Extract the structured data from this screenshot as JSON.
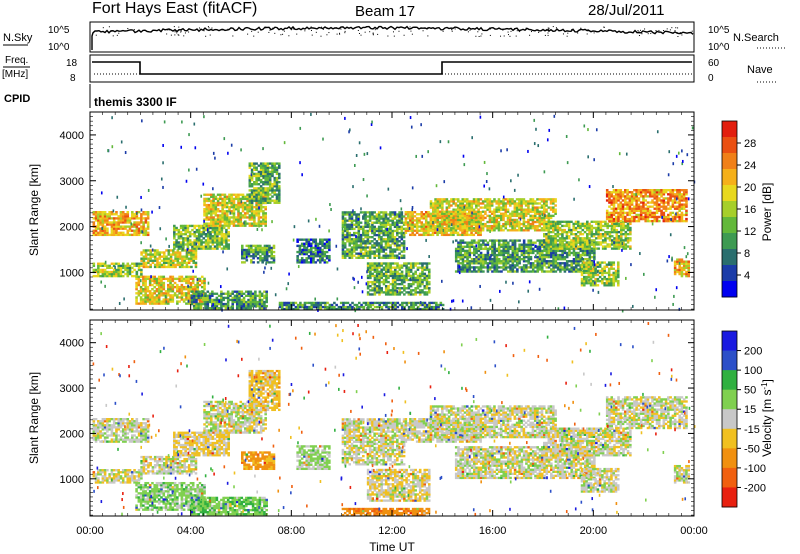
{
  "header": {
    "station": "Fort Hays East (fitACF)",
    "beam": "Beam 17",
    "date": "28/Jul/2011"
  },
  "panels": {
    "nsky": {
      "label": "N.Sky",
      "ticks": [
        "10^5",
        "10^0"
      ],
      "right_ticks": [
        "10^5",
        "10^0"
      ],
      "right_label": "N.Search"
    },
    "freq": {
      "label_top": "Freq.",
      "label_unit": "[MHz]",
      "ticks": [
        "18",
        "8"
      ],
      "right_ticks": [
        "60",
        "0"
      ],
      "right_label": "Nave"
    },
    "cpid": {
      "label": "CPID",
      "text": "themis 3300 IF"
    }
  },
  "colorbars": {
    "power": {
      "title": "Power [dB]",
      "ticks": [
        "28",
        "24",
        "20",
        "16",
        "12",
        "8",
        "4"
      ],
      "colors": [
        "#0000f0",
        "#1b3ca8",
        "#2a6e6e",
        "#3d9a52",
        "#62b83a",
        "#a6cf2a",
        "#e8d81e",
        "#f5b01a",
        "#f08018",
        "#ea5012",
        "#e21e0e"
      ]
    },
    "velocity": {
      "title_main": "Velocity [m s",
      "title_sup": "-1",
      "title_end": "]",
      "ticks": [
        "200",
        "100",
        "50",
        "15",
        "-15",
        "-50",
        "-100",
        "-200"
      ],
      "colors": [
        "#1a1ae0",
        "#2c50c8",
        "#30b040",
        "#80d050",
        "#c8c8c8",
        "#f0c020",
        "#f09010",
        "#f06010",
        "#e82010"
      ]
    }
  },
  "axes": {
    "xlabel": "Time UT",
    "xticks": [
      "00:00",
      "04:00",
      "08:00",
      "12:00",
      "16:00",
      "20:00",
      "00:00"
    ],
    "ylabel": "Slant Range [km]",
    "yticks": [
      "1000",
      "2000",
      "3000",
      "4000"
    ]
  },
  "chart_data": [
    {
      "type": "heatmap",
      "title": "Power",
      "xlabel": "Time UT",
      "ylabel": "Slant Range [km]",
      "x_range_hours": [
        0,
        24
      ],
      "ylim": [
        180,
        4500
      ],
      "value_label": "Power [dB]",
      "value_range": [
        0,
        30
      ],
      "echo_regions": [
        {
          "t0": 0.1,
          "t1": 2.3,
          "r0": 1800,
          "r1": 2300,
          "pow": 20
        },
        {
          "t0": 0.1,
          "t1": 2.0,
          "r0": 900,
          "r1": 1200,
          "pow": 14
        },
        {
          "t0": 1.8,
          "t1": 4.5,
          "r0": 300,
          "r1": 900,
          "pow": 18
        },
        {
          "t0": 2.0,
          "t1": 4.2,
          "r0": 1100,
          "r1": 1500,
          "pow": 16
        },
        {
          "t0": 3.3,
          "t1": 5.5,
          "r0": 1500,
          "r1": 2000,
          "pow": 13
        },
        {
          "t0": 4.5,
          "t1": 7.0,
          "r0": 2000,
          "r1": 2700,
          "pow": 17
        },
        {
          "t0": 6.3,
          "t1": 7.5,
          "r0": 2500,
          "r1": 3400,
          "pow": 12
        },
        {
          "t0": 6.0,
          "t1": 7.3,
          "r0": 1200,
          "r1": 1600,
          "pow": 10
        },
        {
          "t0": 4.0,
          "t1": 7.0,
          "r0": 200,
          "r1": 600,
          "pow": 10
        },
        {
          "t0": 8.2,
          "t1": 9.5,
          "r0": 1200,
          "r1": 1700,
          "pow": 7
        },
        {
          "t0": 10.0,
          "t1": 12.5,
          "r0": 1300,
          "r1": 2300,
          "pow": 11
        },
        {
          "t0": 11.0,
          "t1": 13.5,
          "r0": 500,
          "r1": 1200,
          "pow": 12
        },
        {
          "t0": 12.5,
          "t1": 15.5,
          "r0": 1800,
          "r1": 2300,
          "pow": 19
        },
        {
          "t0": 13.5,
          "t1": 18.5,
          "r0": 1900,
          "r1": 2600,
          "pow": 17
        },
        {
          "t0": 14.5,
          "t1": 20.0,
          "r0": 1000,
          "r1": 1700,
          "pow": 10
        },
        {
          "t0": 18.0,
          "t1": 21.5,
          "r0": 1500,
          "r1": 2100,
          "pow": 14
        },
        {
          "t0": 19.5,
          "t1": 21.0,
          "r0": 700,
          "r1": 1200,
          "pow": 14
        },
        {
          "t0": 20.5,
          "t1": 23.7,
          "r0": 2100,
          "r1": 2800,
          "pow": 22
        },
        {
          "t0": 23.2,
          "t1": 23.8,
          "r0": 900,
          "r1": 1300,
          "pow": 20
        },
        {
          "t0": 7.5,
          "t1": 14.0,
          "r0": 180,
          "r1": 350,
          "pow": 9
        }
      ]
    },
    {
      "type": "heatmap",
      "title": "Velocity",
      "xlabel": "Time UT",
      "ylabel": "Slant Range [km]",
      "x_range_hours": [
        0,
        24
      ],
      "ylim": [
        180,
        4500
      ],
      "value_label": "Velocity [m s^-1]",
      "value_range": [
        -250,
        250
      ],
      "echo_regions": [
        {
          "t0": 0.1,
          "t1": 2.3,
          "r0": 1800,
          "r1": 2300,
          "vel": 0
        },
        {
          "t0": 0.1,
          "t1": 2.0,
          "r0": 900,
          "r1": 1200,
          "vel": -5
        },
        {
          "t0": 1.8,
          "t1": 4.5,
          "r0": 300,
          "r1": 900,
          "vel": 30
        },
        {
          "t0": 2.0,
          "t1": 4.2,
          "r0": 1100,
          "r1": 1500,
          "vel": 0
        },
        {
          "t0": 3.3,
          "t1": 5.5,
          "r0": 1500,
          "r1": 2000,
          "vel": -20
        },
        {
          "t0": 4.5,
          "t1": 7.0,
          "r0": 2000,
          "r1": 2700,
          "vel": 0
        },
        {
          "t0": 6.3,
          "t1": 7.5,
          "r0": 2500,
          "r1": 3400,
          "vel": -30
        },
        {
          "t0": 6.0,
          "t1": 7.3,
          "r0": 1200,
          "r1": 1600,
          "vel": -60
        },
        {
          "t0": 4.0,
          "t1": 7.0,
          "r0": 200,
          "r1": 600,
          "vel": 40
        },
        {
          "t0": 8.2,
          "t1": 9.5,
          "r0": 1200,
          "r1": 1700,
          "vel": 20
        },
        {
          "t0": 10.0,
          "t1": 12.5,
          "r0": 1300,
          "r1": 2300,
          "vel": 0
        },
        {
          "t0": 11.0,
          "t1": 13.5,
          "r0": 500,
          "r1": 1200,
          "vel": -10
        },
        {
          "t0": 12.5,
          "t1": 15.5,
          "r0": 1800,
          "r1": 2300,
          "vel": 0
        },
        {
          "t0": 13.5,
          "t1": 18.5,
          "r0": 1900,
          "r1": 2600,
          "vel": 0
        },
        {
          "t0": 14.5,
          "t1": 20.0,
          "r0": 1000,
          "r1": 1700,
          "vel": 0
        },
        {
          "t0": 18.0,
          "t1": 21.5,
          "r0": 1500,
          "r1": 2100,
          "vel": 0
        },
        {
          "t0": 19.5,
          "t1": 21.0,
          "r0": 700,
          "r1": 1200,
          "vel": 0
        },
        {
          "t0": 20.5,
          "t1": 23.7,
          "r0": 2100,
          "r1": 2800,
          "vel": 0
        },
        {
          "t0": 23.2,
          "t1": 23.8,
          "r0": 900,
          "r1": 1300,
          "vel": 0
        },
        {
          "t0": 10.0,
          "t1": 13.5,
          "r0": 180,
          "r1": 350,
          "vel": -80
        }
      ]
    }
  ]
}
